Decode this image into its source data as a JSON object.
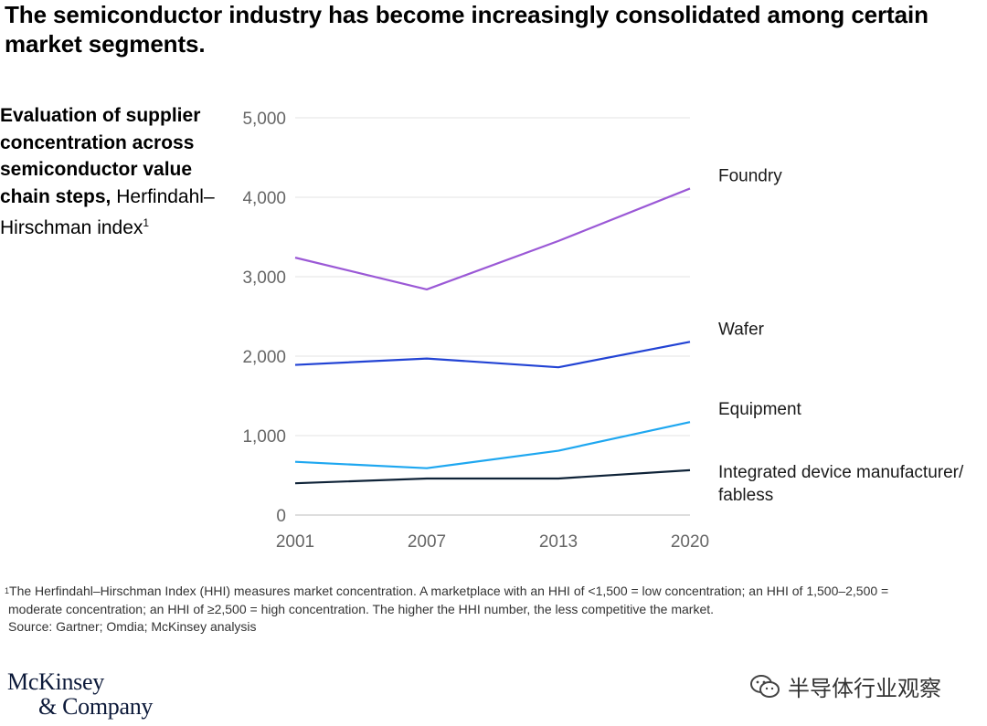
{
  "title": "The semiconductor industry has become increasingly consolidated among certain market segments.",
  "subtitle": {
    "bold": "Evaluation of supplier concentration across semiconductor value chain steps,",
    "normal": "Herfindahl–Hirschman index",
    "sup": "1"
  },
  "chart_data": {
    "type": "line",
    "x": [
      "2001",
      "2007",
      "2013",
      "2020"
    ],
    "ylim": [
      0,
      5000
    ],
    "yticks": [
      0,
      1000,
      2000,
      3000,
      4000,
      5000
    ],
    "ytick_labels": [
      "0",
      "1,000",
      "2,000",
      "3,000",
      "4,000",
      "5,000"
    ],
    "grid": true,
    "series": [
      {
        "name": "Foundry",
        "label_lines": [
          "Foundry"
        ],
        "color": "#9b59d6",
        "values": [
          3240,
          2840,
          3450,
          4110
        ]
      },
      {
        "name": "Wafer",
        "label_lines": [
          "Wafer"
        ],
        "color": "#2243d4",
        "values": [
          1890,
          1970,
          1860,
          2180
        ]
      },
      {
        "name": "Equipment",
        "label_lines": [
          "Equipment"
        ],
        "color": "#1ea7f0",
        "values": [
          670,
          590,
          810,
          1170
        ]
      },
      {
        "name": "Integrated device manufacturer/fabless",
        "label_lines": [
          "Integrated device manufacturer/",
          "fabless"
        ],
        "color": "#0f2338",
        "values": [
          400,
          460,
          460,
          565
        ]
      }
    ]
  },
  "footnote": {
    "sup": "1",
    "line1": "The Herfindahl–Hirschman Index (HHI) measures market concentration. A marketplace with an HHI of <1,500 = low concentration; an HHI of 1,500–2,500 =",
    "line2": "moderate concentration; an HHI of ≥2,500 = high concentration. The higher the HHI number, the less competitive the market.",
    "source": "Source: Gartner; Omdia; McKinsey analysis"
  },
  "logo": {
    "line1": "McKinsey",
    "line2": "& Company"
  },
  "watermark": {
    "text": "半导体行业观察",
    "icon": "wechat-icon"
  }
}
